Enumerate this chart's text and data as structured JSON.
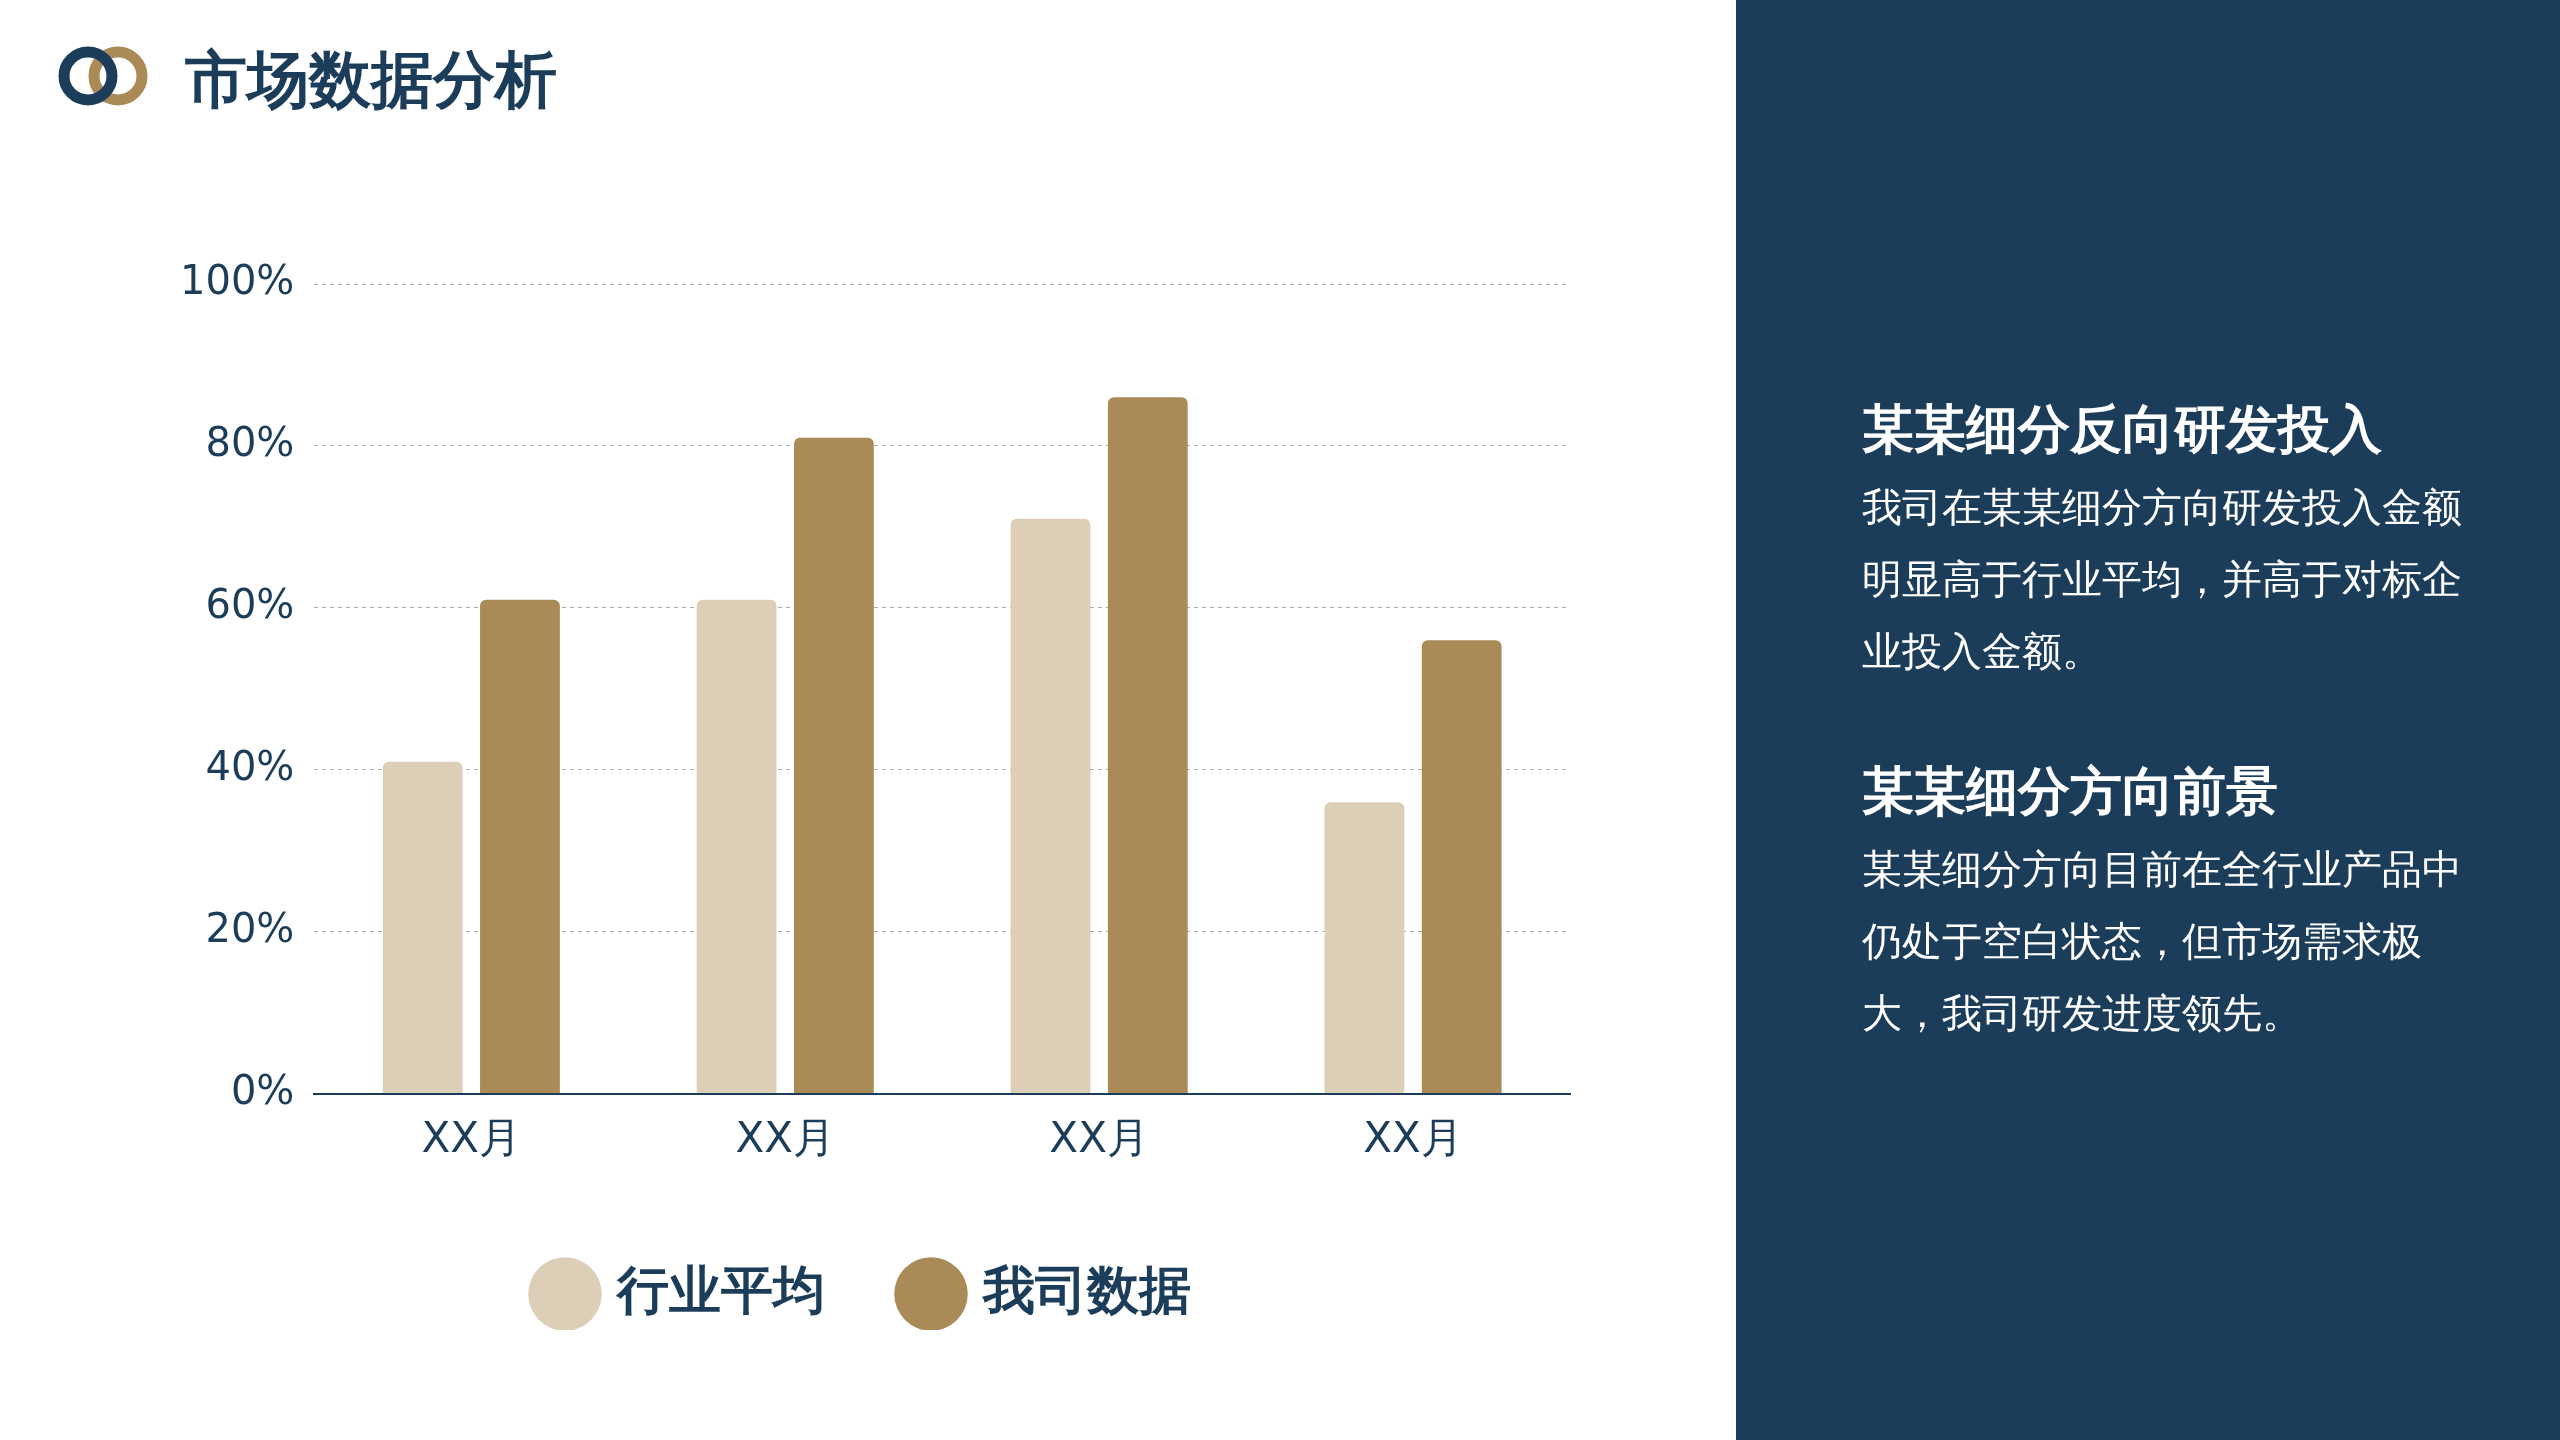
{
  "chart_data": {
    "type": "bar",
    "title": "市场数据分析",
    "categories": [
      "XX月",
      "XX月",
      "XX月",
      "XX月"
    ],
    "series": [
      {
        "name": "行业平均",
        "color": "#ddceb8",
        "values": [
          41,
          61,
          71,
          36
        ]
      },
      {
        "name": "我司数据",
        "color": "#aa8a56",
        "values": [
          61,
          81,
          86,
          56
        ]
      }
    ],
    "ylim": [
      0,
      100
    ],
    "yticks": [
      {
        "value": 0,
        "label": "0%"
      },
      {
        "value": 20,
        "label": "20%"
      },
      {
        "value": 40,
        "label": "40%"
      },
      {
        "value": 60,
        "label": "60%"
      },
      {
        "value": 80,
        "label": "80%"
      },
      {
        "value": 100,
        "label": "100%"
      }
    ],
    "grid": "y",
    "legend": "bottom",
    "annotations": [
      "某某细分反向研发投入",
      "我司在某某细分方向研发投入金额明显高于行业平均，并高于对标企业投入金额。",
      "某某细分方向前景",
      "某某细分方向目前在全行业产品中仍处于空白状态，但市场需求极大，我司研发进度领先。"
    ]
  }
}
